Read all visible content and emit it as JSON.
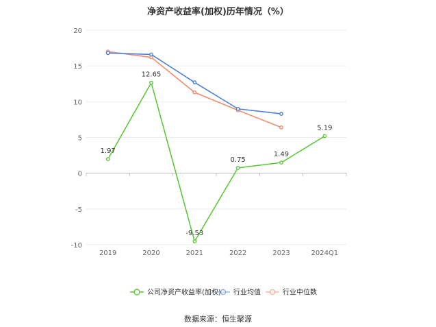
{
  "chart_data": {
    "type": "line",
    "title": "净资产收益率(加权)历年情况（%）",
    "source": "数据来源：恒生聚源",
    "categories": [
      "2019",
      "2020",
      "2021",
      "2022",
      "2023",
      "2024Q1"
    ],
    "ylim": [
      -10,
      20
    ],
    "yticks": [
      "-10",
      "-5",
      "0",
      "5",
      "10",
      "15",
      "20"
    ],
    "series": [
      {
        "name": "公司净资产收益率(加权)",
        "color": "#5cc83a",
        "values": [
          1.97,
          12.65,
          -9.53,
          0.75,
          1.49,
          5.19
        ],
        "labels": [
          "1.97",
          "12.65",
          "-9.53",
          "0.75",
          "1.49",
          "5.19"
        ]
      },
      {
        "name": "行业均值",
        "color": "#4a7fe0",
        "values": [
          16.8,
          16.6,
          12.7,
          9.0,
          8.3,
          null
        ]
      },
      {
        "name": "行业中位数",
        "color": "#f28c6c",
        "values": [
          17.0,
          16.2,
          11.3,
          8.8,
          6.4,
          null
        ]
      }
    ],
    "grid": true,
    "legend": "bottom"
  }
}
